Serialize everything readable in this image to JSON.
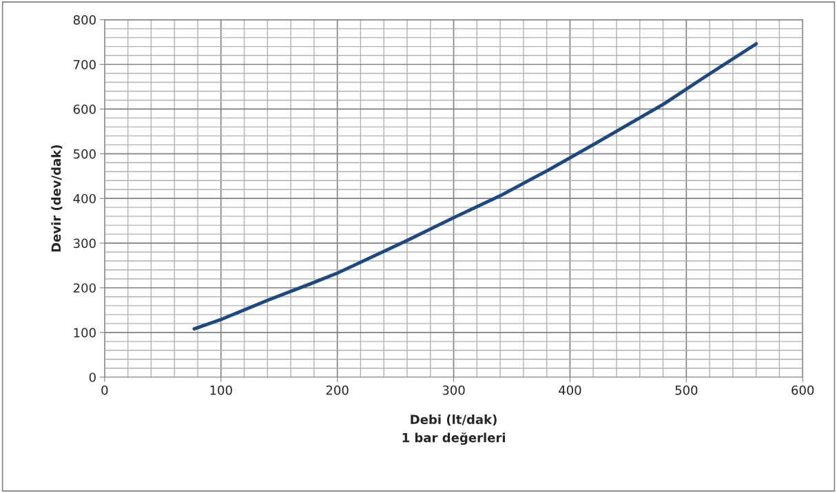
{
  "chart_data": {
    "type": "line",
    "xlabel": "Debi (lt/dak)\n1 bar değerleri",
    "ylabel": "Devir (dev/dak)",
    "series": [
      {
        "color": "#1f497d",
        "x": [
          77,
          100,
          141,
          177,
          201,
          260,
          300,
          340,
          381,
          421,
          481,
          520,
          560
        ],
        "values": [
          108,
          129,
          173,
          209,
          234,
          306,
          357,
          406,
          463,
          522,
          612,
          679,
          746
        ]
      }
    ],
    "xlim": [
      0,
      600
    ],
    "xticks": [
      0,
      100,
      200,
      300,
      400,
      500,
      600
    ],
    "ylim": [
      0,
      800
    ],
    "yticks": [
      0,
      100,
      200,
      300,
      400,
      500,
      600,
      700,
      800
    ],
    "grid": true,
    "legend": false,
    "marker": "none",
    "line_style": "solid"
  }
}
